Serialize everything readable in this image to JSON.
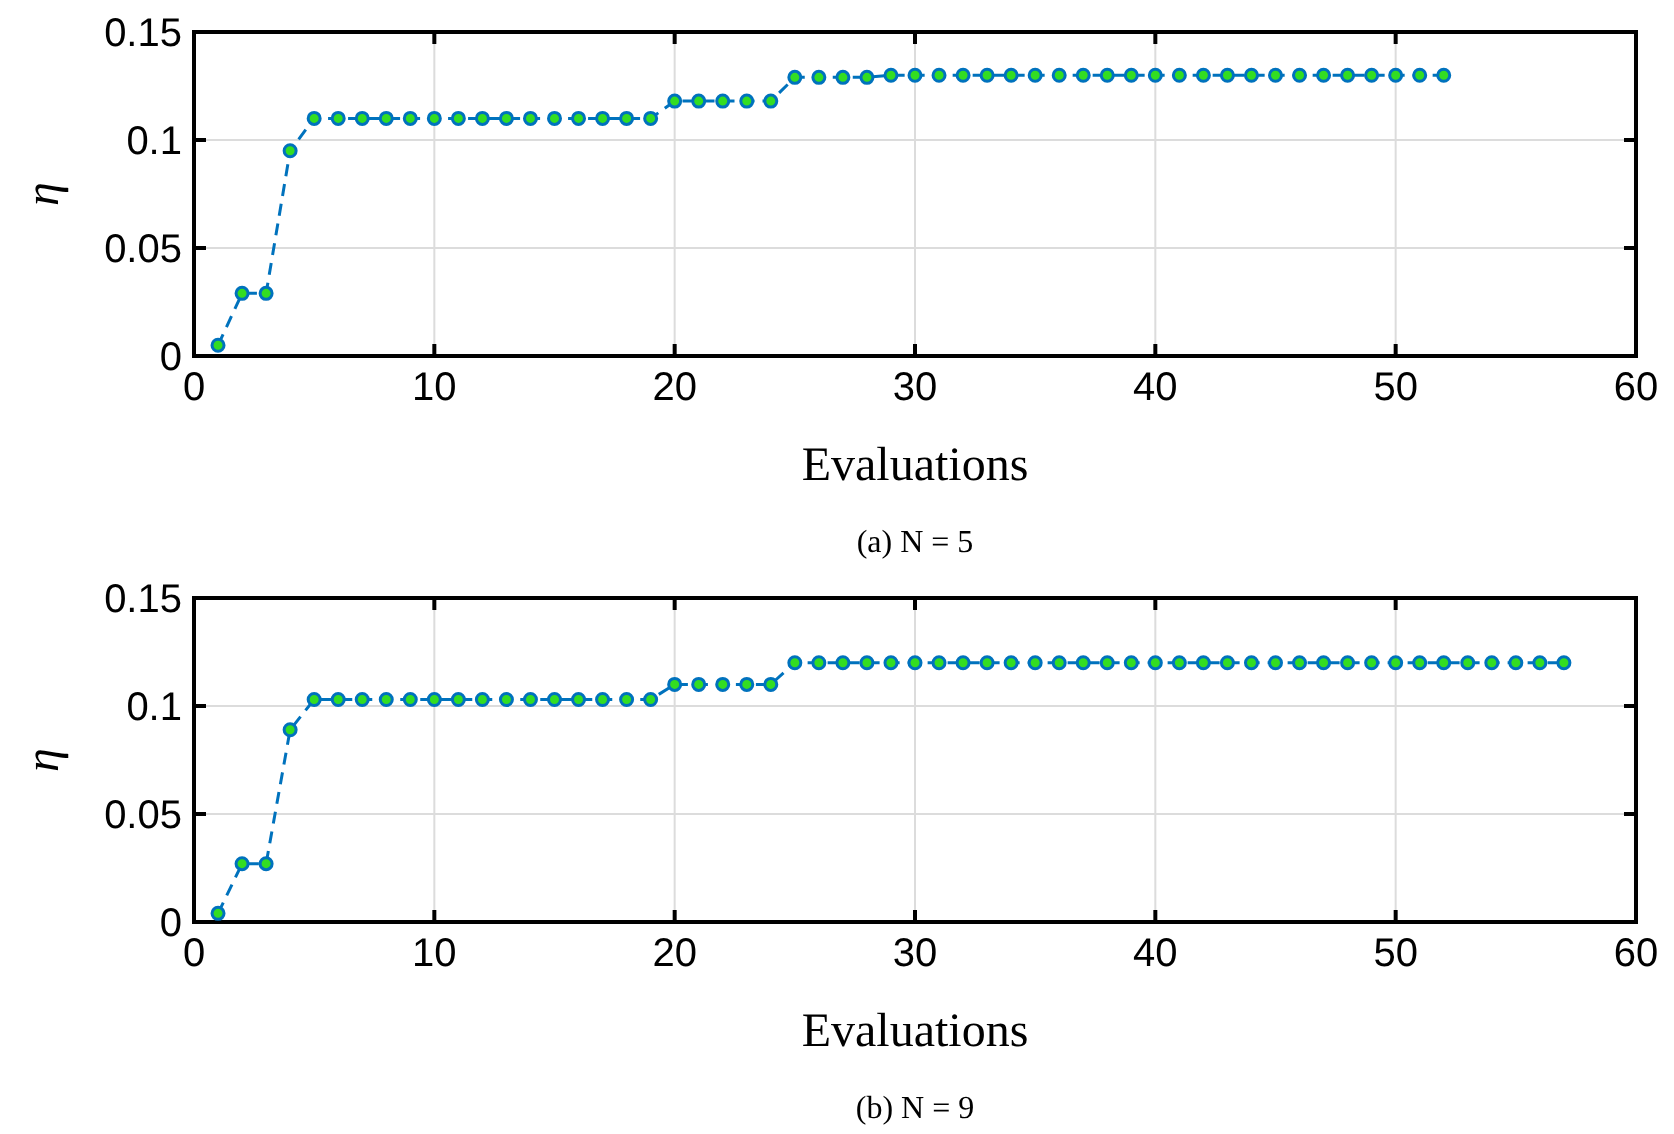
{
  "chart_data": [
    {
      "type": "line",
      "xlabel": "Evaluations",
      "ylabel": "η",
      "annotations": [
        "(a) N = 5"
      ],
      "x": [
        1,
        2,
        3,
        4,
        5,
        6,
        7,
        8,
        9,
        10,
        11,
        12,
        13,
        14,
        15,
        16,
        17,
        18,
        19,
        20,
        21,
        22,
        23,
        24,
        25,
        26,
        27,
        28,
        29,
        30,
        31,
        32,
        33,
        34,
        35,
        36,
        37,
        38,
        39,
        40,
        41,
        42,
        43,
        44,
        45,
        46,
        47,
        48,
        49,
        50,
        51,
        52
      ],
      "series": [
        {
          "color": "#0072bd",
          "values": [
            0.005,
            0.029,
            0.029,
            0.095,
            0.11,
            0.11,
            0.11,
            0.11,
            0.11,
            0.11,
            0.11,
            0.11,
            0.11,
            0.11,
            0.11,
            0.11,
            0.11,
            0.11,
            0.11,
            0.118,
            0.118,
            0.118,
            0.118,
            0.118,
            0.129,
            0.129,
            0.129,
            0.129,
            0.13,
            0.13,
            0.13,
            0.13,
            0.13,
            0.13,
            0.13,
            0.13,
            0.13,
            0.13,
            0.13,
            0.13,
            0.13,
            0.13,
            0.13,
            0.13,
            0.13,
            0.13,
            0.13,
            0.13,
            0.13,
            0.13,
            0.13,
            0.13
          ]
        }
      ],
      "xlim": [
        0,
        60
      ],
      "xticks": [
        0,
        10,
        20,
        30,
        40,
        50,
        60
      ],
      "ylim": [
        0,
        0.15
      ],
      "yticks": [
        0,
        0.05,
        0.1,
        0.15
      ],
      "grid": true,
      "marker": "circle",
      "line_style": "dashed"
    },
    {
      "type": "line",
      "xlabel": "Evaluations",
      "ylabel": "η",
      "annotations": [
        "(b) N = 9"
      ],
      "x": [
        1,
        2,
        3,
        4,
        5,
        6,
        7,
        8,
        9,
        10,
        11,
        12,
        13,
        14,
        15,
        16,
        17,
        18,
        19,
        20,
        21,
        22,
        23,
        24,
        25,
        26,
        27,
        28,
        29,
        30,
        31,
        32,
        33,
        34,
        35,
        36,
        37,
        38,
        39,
        40,
        41,
        42,
        43,
        44,
        45,
        46,
        47,
        48,
        49,
        50,
        51,
        52,
        53,
        54,
        55,
        56,
        57
      ],
      "series": [
        {
          "color": "#0072bd",
          "values": [
            0.004,
            0.027,
            0.027,
            0.089,
            0.103,
            0.103,
            0.103,
            0.103,
            0.103,
            0.103,
            0.103,
            0.103,
            0.103,
            0.103,
            0.103,
            0.103,
            0.103,
            0.103,
            0.103,
            0.11,
            0.11,
            0.11,
            0.11,
            0.11,
            0.12,
            0.12,
            0.12,
            0.12,
            0.12,
            0.12,
            0.12,
            0.12,
            0.12,
            0.12,
            0.12,
            0.12,
            0.12,
            0.12,
            0.12,
            0.12,
            0.12,
            0.12,
            0.12,
            0.12,
            0.12,
            0.12,
            0.12,
            0.12,
            0.12,
            0.12,
            0.12,
            0.12,
            0.12,
            0.12,
            0.12,
            0.12,
            0.12
          ]
        }
      ],
      "xlim": [
        0,
        60
      ],
      "xticks": [
        0,
        10,
        20,
        30,
        40,
        50,
        60
      ],
      "ylim": [
        0,
        0.15
      ],
      "yticks": [
        0,
        0.05,
        0.1,
        0.15
      ],
      "grid": true,
      "marker": "circle",
      "line_style": "dashed"
    }
  ]
}
